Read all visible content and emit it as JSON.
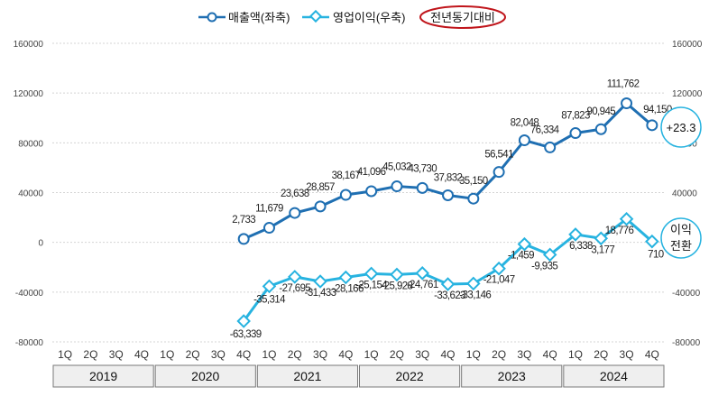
{
  "chart_data": {
    "type": "line",
    "title": "",
    "x_categories": [
      "1Q",
      "2Q",
      "3Q",
      "4Q",
      "1Q",
      "2Q",
      "3Q",
      "4Q",
      "1Q",
      "2Q",
      "3Q",
      "4Q",
      "1Q",
      "2Q",
      "3Q",
      "4Q",
      "1Q",
      "2Q",
      "3Q",
      "4Q",
      "1Q",
      "2Q",
      "3Q",
      "4Q"
    ],
    "years": [
      "2019",
      "2020",
      "2021",
      "2022",
      "2023",
      "2024"
    ],
    "y_left_ticks": [
      "160000",
      "120000",
      "80000",
      "40000",
      "0",
      "-40000",
      "-80000"
    ],
    "y_right_ticks": [
      "160000",
      "120000",
      "80000",
      "40000",
      "0",
      "-40000",
      "-80000"
    ],
    "ylim": [
      -80000,
      160000
    ],
    "series": [
      {
        "name": "매출액(좌축)",
        "color": "#1f6fb2",
        "marker": "circle",
        "start_index": 7,
        "values": [
          2733,
          11679,
          23638,
          28857,
          38167,
          41096,
          45032,
          43730,
          37832,
          35150,
          56541,
          82048,
          76334,
          87823,
          90945,
          111762,
          94150
        ],
        "labels": [
          "2,733",
          "11,679",
          "23,638",
          "28,857",
          "38,167",
          "41,096",
          "45,032",
          "43,730",
          "37,832",
          "35,150",
          "56,541",
          "82,048",
          "76,334",
          "87,823",
          "90,945",
          "111,762",
          "94,150"
        ]
      },
      {
        "name": "영업이익(우축)",
        "color": "#27b3e0",
        "marker": "diamond",
        "start_index": 7,
        "values": [
          -63339,
          -35314,
          -27695,
          -31433,
          -28166,
          -25154,
          -25928,
          -24761,
          -33623,
          -33146,
          -21047,
          -1459,
          -9935,
          6338,
          3177,
          18776,
          710
        ],
        "labels": [
          "-63,339",
          "-35,314",
          "-27,695",
          "-31,433",
          "-28,166",
          "-25,154",
          "-25,928",
          "-24,761",
          "-33,623",
          "-33,146",
          "-21,047",
          "-1,459",
          "-9,935",
          "6,338",
          "3,177",
          "18,776",
          "710"
        ]
      }
    ],
    "legend": {
      "position": "top",
      "yoy_label": "전년동기대비"
    },
    "annotations": {
      "revenue_yoy": "+23.3",
      "profit_line1": "이익",
      "profit_line2": "전환"
    }
  },
  "colors": {
    "revenue": "#1f6fb2",
    "profit": "#27b3e0",
    "yoy_oval": "#c0151b",
    "year_row": "#efefef"
  }
}
